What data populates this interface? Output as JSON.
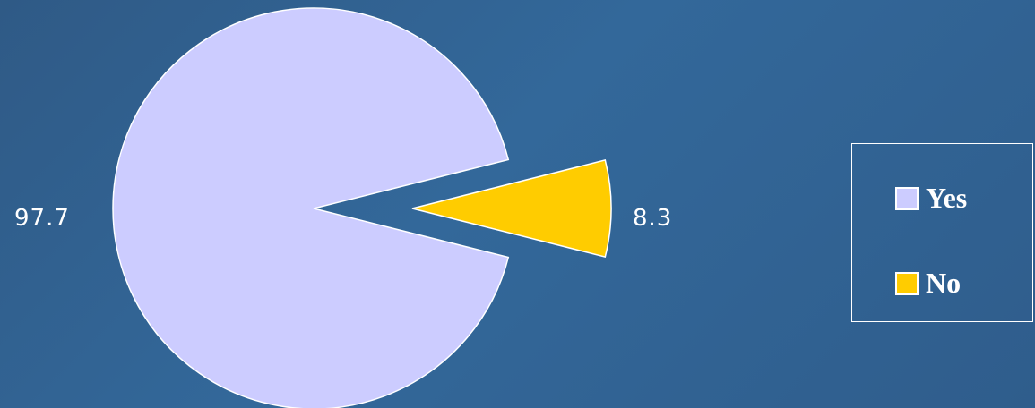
{
  "chart_data": {
    "type": "pie",
    "categories": [
      "Yes",
      "No"
    ],
    "values": [
      97.7,
      8.3
    ],
    "colors": [
      "#ccccff",
      "#ffcc00"
    ],
    "data_labels": [
      "97.7",
      "8.3"
    ],
    "legend_position": "right",
    "exploded_slice": "No"
  }
}
